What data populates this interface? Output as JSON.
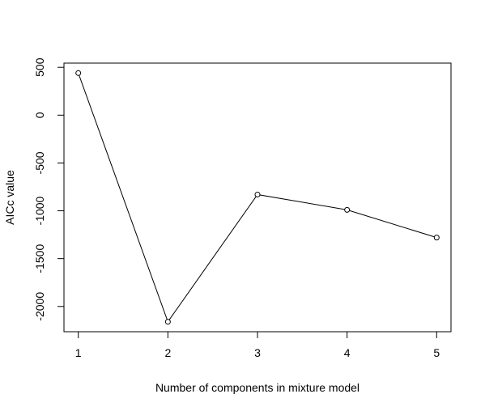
{
  "chart_data": {
    "type": "line",
    "title": "",
    "xlabel": "Number of components in mixture model",
    "ylabel": "AICc value",
    "x": [
      1,
      2,
      3,
      4,
      5
    ],
    "series": [
      {
        "values": [
          440,
          -2160,
          -830,
          -990,
          -1280
        ]
      }
    ],
    "xlim": [
      0.84,
      5.16
    ],
    "ylim": [
      -2264,
      544
    ],
    "xticks": [
      1,
      2,
      3,
      4,
      5
    ],
    "yticks": [
      -2000,
      -1500,
      -1000,
      -500,
      0,
      500
    ],
    "xtick_labels": [
      "1",
      "2",
      "3",
      "4",
      "5"
    ],
    "ytick_labels": [
      "-2000",
      "-1500",
      "-1000",
      "-500",
      "0",
      "500"
    ],
    "marker": "open-circle",
    "line_color": "#000000",
    "grid": false,
    "legend": "none"
  }
}
